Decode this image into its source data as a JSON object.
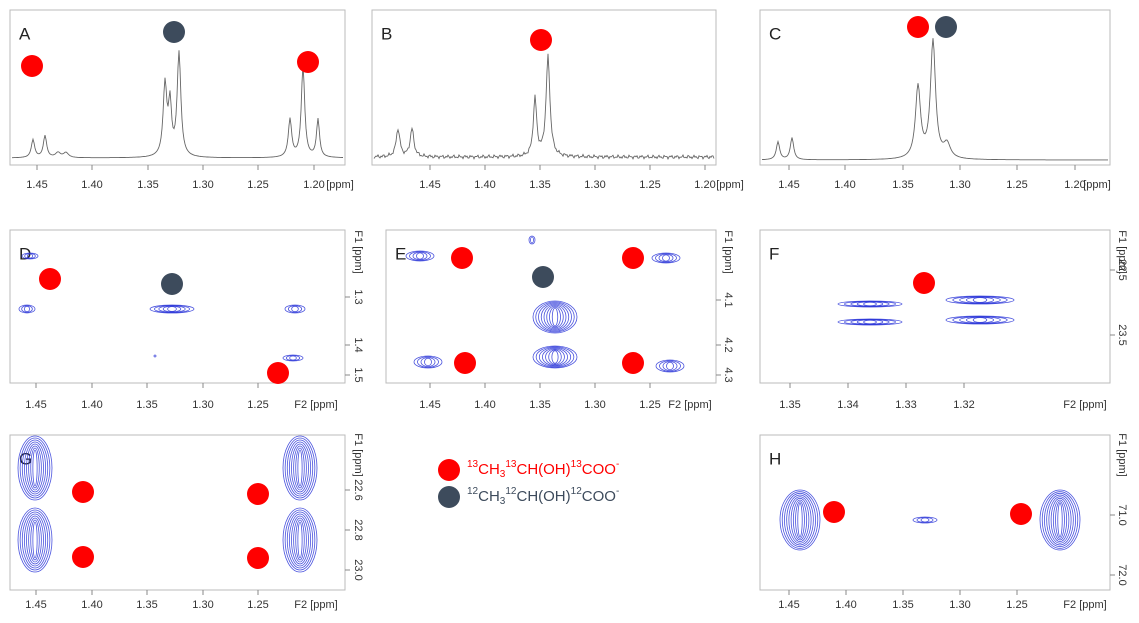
{
  "panels": [
    {
      "label": "A",
      "xticks": [
        "1.45",
        "1.40",
        "1.35",
        "1.30",
        "1.25",
        "1.20"
      ],
      "xunit": "[ppm]"
    },
    {
      "label": "B",
      "xticks": [
        "1.45",
        "1.40",
        "1.35",
        "1.30",
        "1.25",
        "1.20"
      ],
      "xunit": "[ppm]"
    },
    {
      "label": "C",
      "xticks": [
        "1.45",
        "1.40",
        "1.35",
        "1.30",
        "1.25",
        "1.20"
      ],
      "xunit": "[ppm]"
    },
    {
      "label": "D",
      "xticks": [
        "1.45",
        "1.40",
        "1.35",
        "1.30",
        "1.25"
      ],
      "xunit": "F2 [ppm]",
      "yunit": "F1 [ppm]",
      "yticks": [
        "1.3",
        "1.4",
        "1.5"
      ]
    },
    {
      "label": "E",
      "xticks": [
        "1.45",
        "1.40",
        "1.35",
        "1.30",
        "1.25"
      ],
      "xunit": "F2 [ppm]",
      "yunit": "F1 [ppm]",
      "yticks": [
        "4.1",
        "4.2",
        "4.3"
      ]
    },
    {
      "label": "F",
      "xticks": [
        "1.35",
        "1.34",
        "1.33",
        "1.32"
      ],
      "xunit": "F2 [ppm]",
      "yunit": "F1 [ppm]",
      "yticks": [
        "22.5",
        "23.5"
      ]
    },
    {
      "label": "G",
      "xticks": [
        "1.45",
        "1.40",
        "1.35",
        "1.30",
        "1.25"
      ],
      "xunit": "F2 [ppm]",
      "yunit": "F1 [ppm]",
      "yticks": [
        "22.6",
        "22.8",
        "23.0"
      ]
    },
    {
      "label": "H",
      "xticks": [
        "1.45",
        "1.40",
        "1.35",
        "1.30",
        "1.25"
      ],
      "xunit": "F2 [ppm]",
      "yunit": "F1 [ppm]",
      "yticks": [
        "71.0",
        "72.0"
      ]
    }
  ],
  "legend": [
    {
      "parts": [
        "13",
        "CH",
        "3",
        "13",
        "CH(OH)",
        "13",
        "COO",
        "-"
      ]
    },
    {
      "parts": [
        "12",
        "CH",
        "3",
        "12",
        "CH(OH)",
        "12",
        "COO",
        "-"
      ]
    }
  ]
}
